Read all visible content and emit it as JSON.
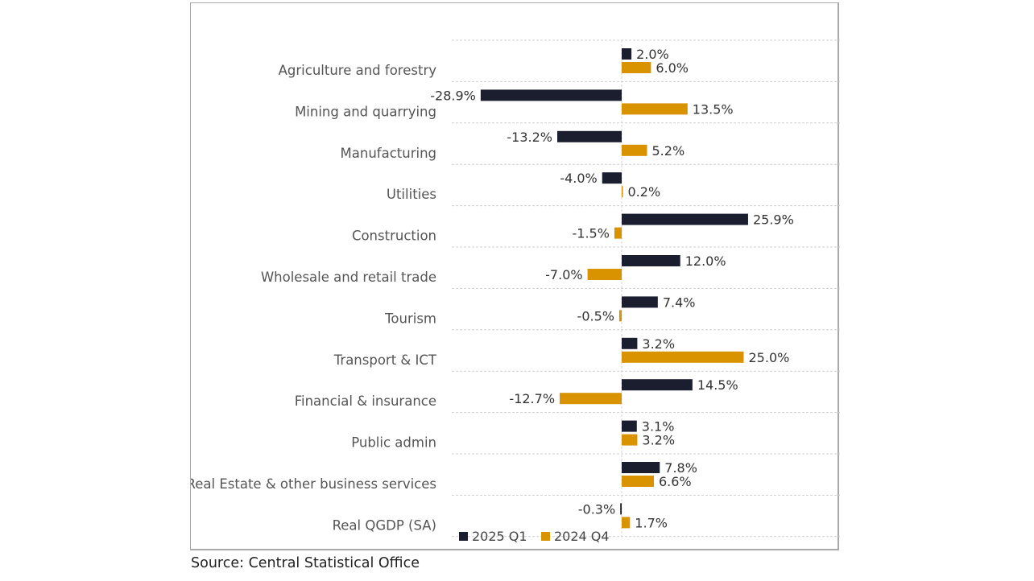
{
  "chart_data": {
    "type": "bar",
    "orientation": "horizontal",
    "title": "",
    "xlabel": "",
    "ylabel": "",
    "xlim": [
      -35,
      45
    ],
    "grid": true,
    "legend_position": "bottom-left",
    "categories": [
      "Agriculture and forestry",
      "Mining and quarrying",
      "Manufacturing",
      "Utilities",
      "Construction",
      "Wholesale and retail trade",
      "Tourism",
      "Transport & ICT",
      "Financial & insurance",
      "Public admin",
      "Real Estate & other business services",
      "Real QGDP (SA)"
    ],
    "series": [
      {
        "name": "2025 Q1",
        "color": "#1b1e2e",
        "values": [
          2.0,
          -28.9,
          -13.2,
          -4.0,
          25.9,
          12.0,
          7.4,
          3.2,
          14.5,
          3.1,
          7.8,
          -0.3
        ],
        "labels": [
          "2.0%",
          "-28.9%",
          "-13.2%",
          "-4.0%",
          "25.9%",
          "12.0%",
          "7.4%",
          "3.2%",
          "14.5%",
          "3.1%",
          "7.8%",
          "-0.3%"
        ]
      },
      {
        "name": "2024 Q4",
        "color": "#d99200",
        "values": [
          6.0,
          13.5,
          5.2,
          0.2,
          -1.5,
          -7.0,
          -0.5,
          25.0,
          -12.7,
          3.2,
          6.6,
          1.7
        ],
        "labels": [
          "6.0%",
          "13.5%",
          "5.2%",
          "0.2%",
          "-1.5%",
          "-7.0%",
          "-0.5%",
          "25.0%",
          "-12.7%",
          "3.2%",
          "6.6%",
          "1.7%"
        ]
      }
    ],
    "value_suffix": "%"
  },
  "source": "Source: Central Statistical Office"
}
